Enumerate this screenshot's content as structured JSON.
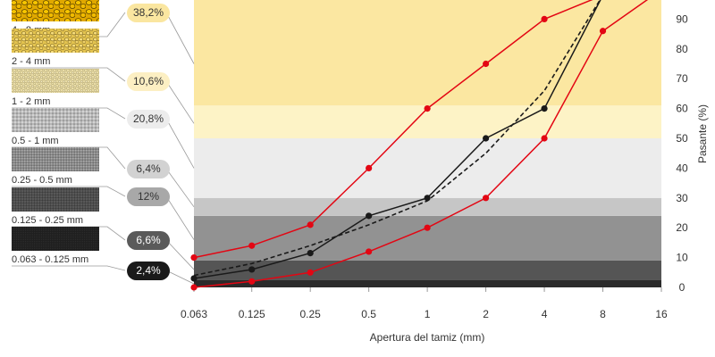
{
  "chart_data": {
    "type": "line",
    "xlabel": "Apertura del tamiz (mm)",
    "ylabel": "Pasante (%)",
    "x_scale": "log2",
    "x_ticks": [
      "0.063",
      "0.125",
      "0.25",
      "0.5",
      "1",
      "2",
      "4",
      "8",
      "16"
    ],
    "y_ticks": [
      "0",
      "10",
      "20",
      "30",
      "40",
      "50",
      "60",
      "70",
      "80",
      "90"
    ],
    "ylim": [
      0,
      100
    ],
    "x": [
      0.063,
      0.125,
      0.25,
      0.5,
      1,
      2,
      4,
      8
    ],
    "series": [
      {
        "color": "#e30613",
        "style": "solid",
        "markers": true,
        "values": [
          10,
          14,
          21,
          40,
          60,
          75,
          90,
          98
        ]
      },
      {
        "color": "#e30613",
        "style": "solid",
        "markers": true,
        "values": [
          0,
          2,
          5,
          12,
          20,
          30,
          50,
          86
        ]
      },
      {
        "color": "#1a1a1a",
        "style": "solid",
        "markers": true,
        "values": [
          3,
          6,
          11.5,
          24,
          30,
          50,
          60,
          98
        ]
      },
      {
        "color": "#1a1a1a",
        "style": "dashed",
        "markers": false,
        "values": [
          4,
          8,
          14,
          21,
          29,
          45,
          66,
          98
        ]
      }
    ],
    "bands": [
      {
        "from": 0,
        "to": 2.4,
        "color": "#2b2b2b"
      },
      {
        "from": 2.4,
        "to": 9,
        "color": "#555555"
      },
      {
        "from": 9,
        "to": 24,
        "color": "#929292"
      },
      {
        "from": 24,
        "to": 30,
        "color": "#c6c6c6"
      },
      {
        "from": 30,
        "to": 50,
        "color": "#ececec"
      },
      {
        "from": 50,
        "to": 61,
        "color": "#fdf3c6"
      },
      {
        "from": 61,
        "to": 100,
        "color": "#fbe7a1"
      }
    ],
    "fractions": [
      {
        "label": "4 - 8 mm",
        "pct": "38,2%",
        "pill": "#fae6a0",
        "text": "#333333",
        "swatch": "gravel-coarse"
      },
      {
        "label": "2 - 4 mm",
        "pct": "10,6%",
        "pill": "#fcefc3",
        "text": "#333333",
        "swatch": "gravel-medium"
      },
      {
        "label": "1 - 2 mm",
        "pct": "20,8%",
        "pill": "#ececec",
        "text": "#333333",
        "swatch": "sand-coarse"
      },
      {
        "label": "0.5 - 1 mm",
        "pct": "6,4%",
        "pill": "#d2d2d2",
        "text": "#333333",
        "swatch": "sand-medium"
      },
      {
        "label": "0.25 - 0.5 mm",
        "pct": "12%",
        "pill": "#a8a8a8",
        "text": "#333333",
        "swatch": "sand-fine"
      },
      {
        "label": "0.125 - 0.25 mm",
        "pct": "6,6%",
        "pill": "#5a5a5a",
        "text": "#ffffff",
        "swatch": "filler-coarse"
      },
      {
        "label": "0.063 - 0.125 mm",
        "pct": "2,4%",
        "pill": "#1a1a1a",
        "text": "#ffffff",
        "swatch": "filler-fine"
      }
    ]
  }
}
